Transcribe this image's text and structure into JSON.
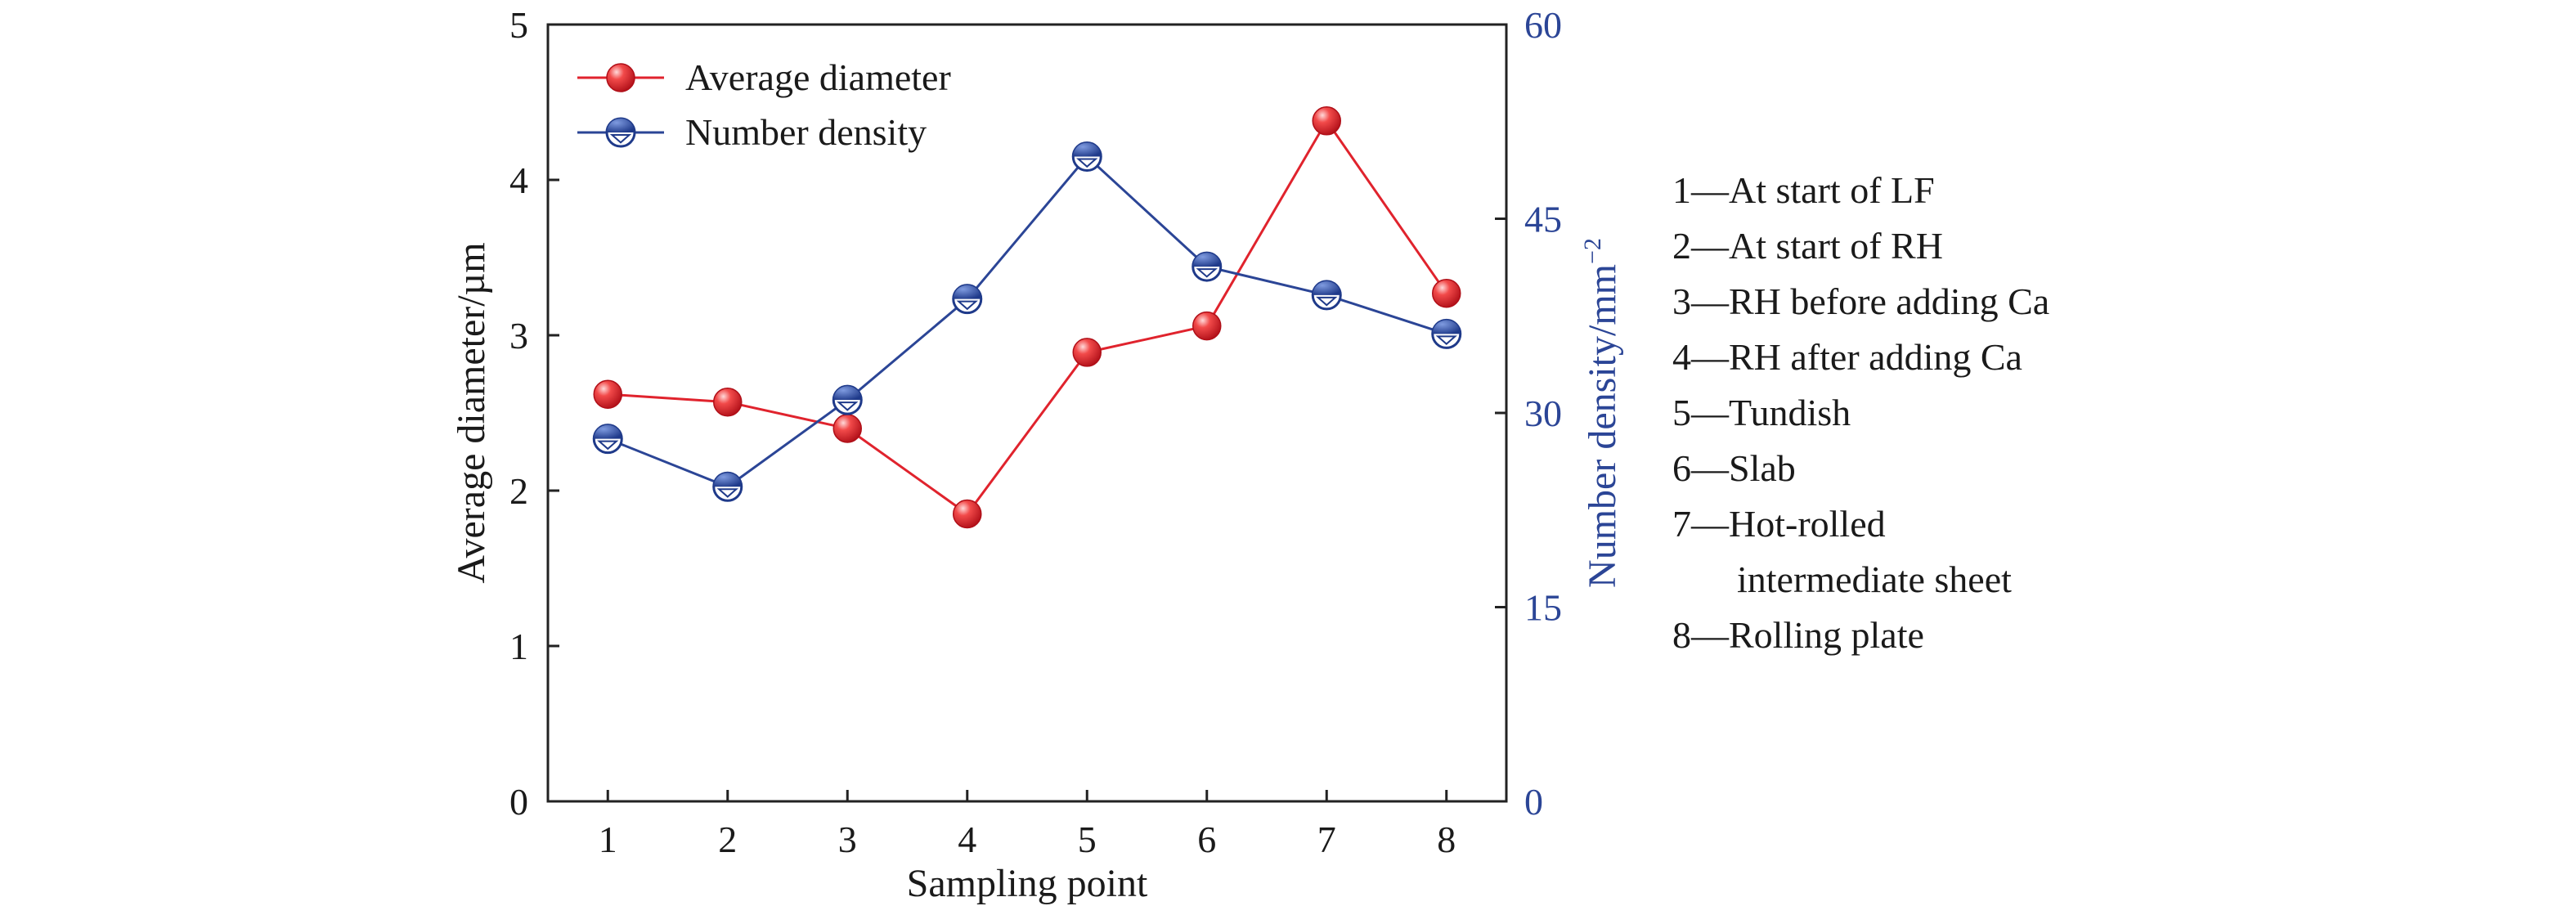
{
  "chart_data": {
    "type": "line",
    "title": "",
    "xlabel": "Sampling point",
    "ylabel_left": "Average diameter/µm",
    "ylabel_right": "Number density/mm",
    "ylabel_right_superscript": "−2",
    "x": [
      1,
      2,
      3,
      4,
      5,
      6,
      7,
      8
    ],
    "xlim": [
      0.5,
      8.5
    ],
    "ylim_left": [
      0,
      5
    ],
    "ylim_right": [
      0,
      60
    ],
    "yticks_left": [
      0,
      1,
      2,
      3,
      4,
      5
    ],
    "yticks_right": [
      0,
      15,
      30,
      45,
      60
    ],
    "grid": false,
    "legend_position": "top-left",
    "series": [
      {
        "name": "Average diameter",
        "axis": "left",
        "color": "#e0232d",
        "marker": "sphere",
        "values": [
          2.62,
          2.57,
          2.4,
          1.85,
          2.89,
          3.06,
          4.38,
          3.27
        ]
      },
      {
        "name": "Number density",
        "axis": "right",
        "color": "#2b4596",
        "marker": "half-filled-circle",
        "values": [
          28.0,
          24.3,
          31.0,
          38.8,
          49.8,
          41.3,
          39.1,
          36.1
        ]
      }
    ],
    "annotations": [
      "1—At start of LF",
      "2—At start of RH",
      "3—RH before adding Ca",
      "4—RH after adding Ca",
      "5—Tundish",
      "6—Slab",
      "7—Hot-rolled",
      "intermediate sheet",
      "8—Rolling plate"
    ]
  }
}
